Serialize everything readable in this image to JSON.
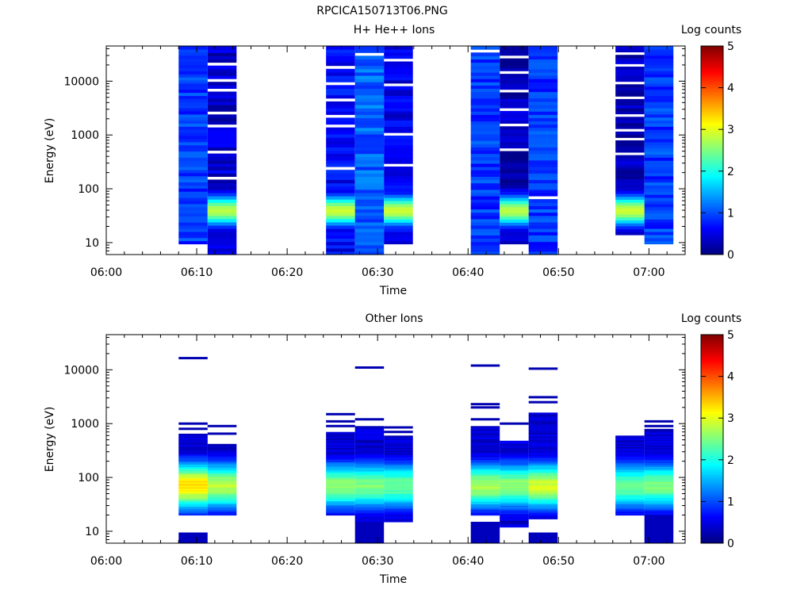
{
  "figure_title": "RPCICA150713T06.PNG",
  "colorscale_stops": [
    "#00007f",
    "#0000ff",
    "#007fff",
    "#00ffff",
    "#7fff7f",
    "#ffff00",
    "#ff7f00",
    "#ff0000",
    "#7f0000"
  ],
  "chart_data": [
    {
      "type": "heatmap",
      "title": "H+ He++ Ions",
      "xlabel": "Time",
      "ylabel": "Energy (eV)",
      "colorbar_label": "Log counts",
      "x_ticks": [
        "06:00",
        "06:10",
        "06:20",
        "06:30",
        "06:40",
        "06:50",
        "07:00"
      ],
      "y_ticks": [
        "10",
        "100",
        "1000",
        "10000"
      ],
      "colorbar_ticks": [
        "0",
        "1",
        "2",
        "3",
        "4",
        "5"
      ],
      "xlim_minutes_after_0600": [
        0,
        64
      ],
      "ylim_ev": [
        6,
        45000
      ],
      "clim": [
        0,
        5
      ],
      "y_scale": "log",
      "columns": [
        {
          "t0": 8.0,
          "t1": 11.2,
          "emin": 9.5,
          "emax": 45000,
          "low_peak": 0.9,
          "high_level": 0.9,
          "gaps": []
        },
        {
          "t0": 11.2,
          "t1": 14.4,
          "emin": 6,
          "emax": 45000,
          "low_peak": 2.8,
          "high_level": 0.4,
          "gaps": [
            160,
            480,
            900,
            1500,
            2600,
            4200,
            7000,
            11000,
            22000
          ]
        },
        {
          "t0": 24.3,
          "t1": 27.5,
          "emin": 6,
          "emax": 45000,
          "low_peak": 2.9,
          "high_level": 0.6,
          "gaps": [
            250,
            600,
            1500,
            2200,
            4500,
            9000,
            18000
          ]
        },
        {
          "t0": 27.5,
          "t1": 30.7,
          "emin": 6,
          "emax": 45000,
          "low_peak": 0.6,
          "high_level": 1.1,
          "gaps": [
            30000
          ]
        },
        {
          "t0": 30.7,
          "t1": 33.9,
          "emin": 9.5,
          "emax": 45000,
          "low_peak": 2.9,
          "high_level": 0.5,
          "gaps": [
            280,
            1100,
            2800,
            9000,
            25000
          ]
        },
        {
          "t0": 40.3,
          "t1": 43.5,
          "emin": 6,
          "emax": 45000,
          "low_peak": 0.5,
          "high_level": 0.9,
          "gaps": [
            38000
          ]
        },
        {
          "t0": 43.5,
          "t1": 46.7,
          "emin": 9.5,
          "emax": 45000,
          "low_peak": 2.8,
          "high_level": 0.3,
          "gaps": [
            200,
            550,
            650,
            1500,
            3000,
            7000,
            15000,
            30000
          ]
        },
        {
          "t0": 46.7,
          "t1": 49.9,
          "emin": 6,
          "emax": 45000,
          "low_peak": 0.7,
          "high_level": 0.9,
          "gaps": [
            70
          ]
        },
        {
          "t0": 56.3,
          "t1": 59.5,
          "emin": 14,
          "emax": 45000,
          "low_peak": 2.9,
          "high_level": 0.3,
          "gaps": [
            450,
            800,
            1300,
            2400,
            4800,
            9000,
            20000,
            32000
          ]
        },
        {
          "t0": 59.5,
          "t1": 62.7,
          "emin": 9.5,
          "emax": 45000,
          "low_peak": 0.8,
          "high_level": 0.9,
          "gaps": []
        }
      ]
    },
    {
      "type": "heatmap",
      "title": "Other Ions",
      "xlabel": "Time",
      "ylabel": "Energy (eV)",
      "colorbar_label": "Log counts",
      "x_ticks": [
        "06:00",
        "06:10",
        "06:20",
        "06:30",
        "06:40",
        "06:50",
        "07:00"
      ],
      "y_ticks": [
        "10",
        "100",
        "1000",
        "10000"
      ],
      "colorbar_ticks": [
        "0",
        "1",
        "2",
        "3",
        "4",
        "5"
      ],
      "xlim_minutes_after_0600": [
        0,
        64
      ],
      "ylim_ev": [
        6,
        45000
      ],
      "clim": [
        0,
        5
      ],
      "y_scale": "log",
      "columns": [
        {
          "t0": 8.0,
          "t1": 11.2,
          "emin": 20,
          "emax": 650,
          "low_peak": 3.3,
          "high_level": 0.2,
          "lines": [
            800,
            1000,
            16500
          ],
          "bottom_block": [
            6,
            9.5
          ]
        },
        {
          "t0": 11.2,
          "t1": 14.4,
          "emin": 20,
          "emax": 420,
          "low_peak": 2.8,
          "high_level": 0.2,
          "lines": [
            650,
            900
          ],
          "bottom_block": null
        },
        {
          "t0": 24.3,
          "t1": 27.5,
          "emin": 20,
          "emax": 700,
          "low_peak": 2.6,
          "high_level": 0.2,
          "lines": [
            900,
            1100,
            1500
          ],
          "bottom_block": null
        },
        {
          "t0": 27.5,
          "t1": 30.7,
          "emin": 15,
          "emax": 900,
          "low_peak": 2.5,
          "high_level": 0.2,
          "lines": [
            1200,
            11000
          ],
          "bottom_block": [
            6,
            15
          ]
        },
        {
          "t0": 30.7,
          "t1": 33.9,
          "emin": 15,
          "emax": 600,
          "low_peak": 2.4,
          "high_level": 0.2,
          "lines": [
            700,
            850
          ],
          "bottom_block": null
        },
        {
          "t0": 40.3,
          "t1": 43.5,
          "emin": 20,
          "emax": 900,
          "low_peak": 2.7,
          "high_level": 0.2,
          "lines": [
            1200,
            2000,
            2300,
            12000
          ],
          "bottom_block": [
            6,
            15
          ]
        },
        {
          "t0": 43.5,
          "t1": 46.7,
          "emin": 12,
          "emax": 480,
          "low_peak": 2.6,
          "high_level": 0.2,
          "lines": [
            1000
          ],
          "bottom_block": null
        },
        {
          "t0": 46.7,
          "t1": 49.9,
          "emin": 17,
          "emax": 1600,
          "low_peak": 2.9,
          "high_level": 0.2,
          "lines": [
            2500,
            3100,
            10500
          ],
          "bottom_block": [
            6,
            9.5
          ]
        },
        {
          "t0": 56.3,
          "t1": 59.5,
          "emin": 20,
          "emax": 600,
          "low_peak": 2.4,
          "high_level": 0.2,
          "lines": [],
          "bottom_block": null
        },
        {
          "t0": 59.5,
          "t1": 62.7,
          "emin": 20,
          "emax": 800,
          "low_peak": 2.5,
          "high_level": 0.2,
          "lines": [
            900,
            1100
          ],
          "bottom_block": [
            6,
            20
          ]
        }
      ]
    }
  ]
}
